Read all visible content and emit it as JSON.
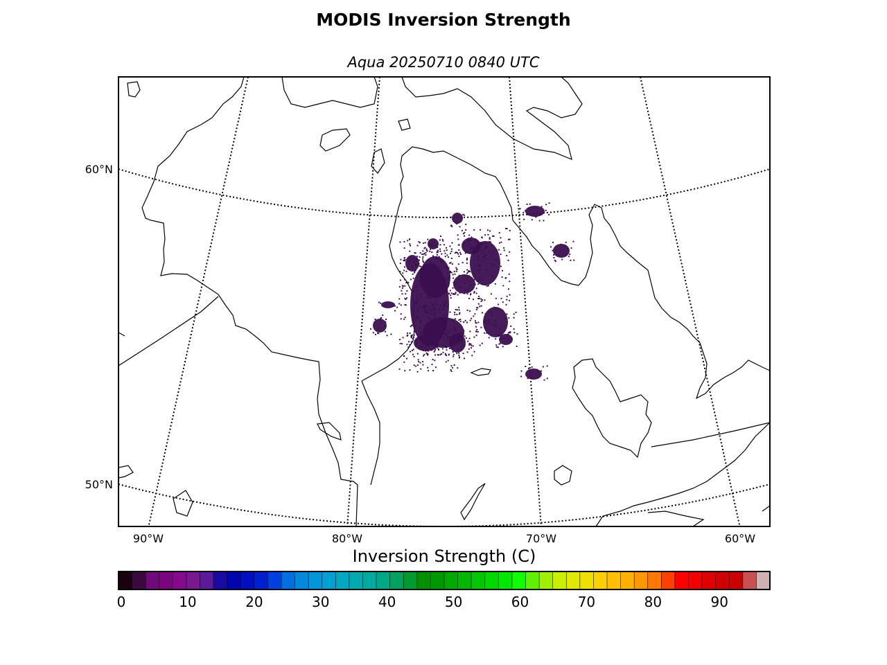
{
  "title": "MODIS Inversion Strength",
  "subtitle": "Aqua 20250710 0840 UTC",
  "map": {
    "lat_labels": [
      "60°N",
      "50°N"
    ],
    "lon_labels": [
      "90°W",
      "80°W",
      "70°W",
      "60°W"
    ],
    "data_color": "#3b0f4f",
    "coastline_color": "#000000"
  },
  "colorbar": {
    "label": "Inversion Strength (C)",
    "min": 0,
    "max": 98,
    "tick_labels": [
      "0",
      "10",
      "20",
      "30",
      "40",
      "50",
      "60",
      "70",
      "80",
      "90"
    ],
    "colors": [
      "#1a0010",
      "#3a0a3e",
      "#6f0a7a",
      "#7a067f",
      "#850a8d",
      "#7a1890",
      "#5a1a9a",
      "#1a0aa2",
      "#0005b0",
      "#0010c0",
      "#0020d0",
      "#0040e0",
      "#0070e0",
      "#0088dc",
      "#0098d8",
      "#00a0d0",
      "#00a8c0",
      "#00aab0",
      "#00aa9c",
      "#00a888",
      "#00a060",
      "#009a30",
      "#009000",
      "#009800",
      "#00a800",
      "#00b800",
      "#00c800",
      "#00d800",
      "#00e800",
      "#10ff00",
      "#60f000",
      "#a0f000",
      "#c8f000",
      "#e0e800",
      "#f0e000",
      "#ffd000",
      "#ffc000",
      "#ffb000",
      "#ff9800",
      "#ff7800",
      "#ff4000",
      "#ff0000",
      "#f00000",
      "#e00000",
      "#d00000",
      "#cc0000",
      "#c85050",
      "#d0b0b0"
    ]
  }
}
